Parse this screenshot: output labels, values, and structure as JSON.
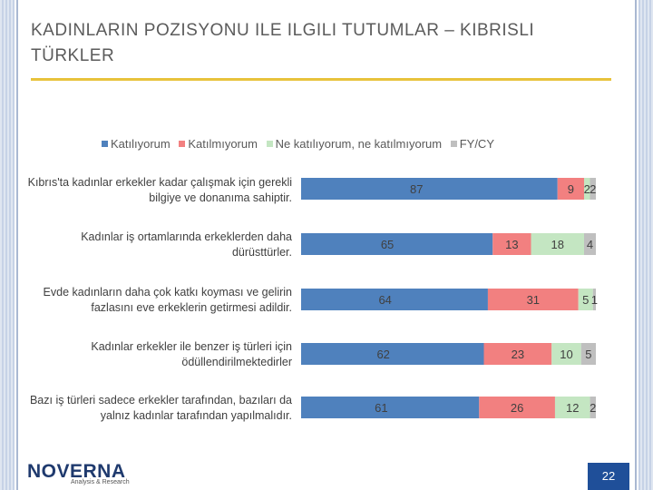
{
  "slide": {
    "title": "Kadınların Pozisyonu ile ilgili Tutumlar – Kıbrıslı Türkler",
    "page_number": "22",
    "logo_text": "NOVERNA",
    "logo_subtext": "Analysis & Research"
  },
  "colors": {
    "Katılıyorum": "#4f81bd",
    "Katılmıyorum": "#f28080",
    "Ne katılıyorum, ne katılmıyorum": "#c4e6c2",
    "FY/CY": "#bfbfbf"
  },
  "chart_data": {
    "type": "bar",
    "orientation": "horizontal",
    "stacked": true,
    "stack_normalized": true,
    "legend_position": "top",
    "grid": false,
    "categories": [
      "Kıbrıs'ta kadınlar erkekler kadar çalışmak için gerekli bilgiye ve donanıma sahiptir.",
      "Kadınlar iş ortamlarında erkeklerden daha dürüsttürler.",
      "Evde kadınların daha çok katkı koyması ve gelirin fazlasını eve erkeklerin getirmesi adildir.",
      "Kadınlar erkekler ile benzer iş türleri için ödüllendirilmektedirler",
      "Bazı iş türleri sadece erkekler tarafından, bazıları da yalnız kadınlar tarafından yapılmalıdır."
    ],
    "series": [
      {
        "name": "Katılıyorum",
        "values": [
          87,
          65,
          64,
          62,
          61
        ]
      },
      {
        "name": "Katılmıyorum",
        "values": [
          9,
          13,
          31,
          23,
          26
        ]
      },
      {
        "name": "Ne katılıyorum, ne katılmıyorum",
        "values": [
          2,
          18,
          5,
          10,
          12
        ]
      },
      {
        "name": "FY/CY",
        "values": [
          2,
          4,
          1,
          5,
          2
        ]
      }
    ]
  }
}
